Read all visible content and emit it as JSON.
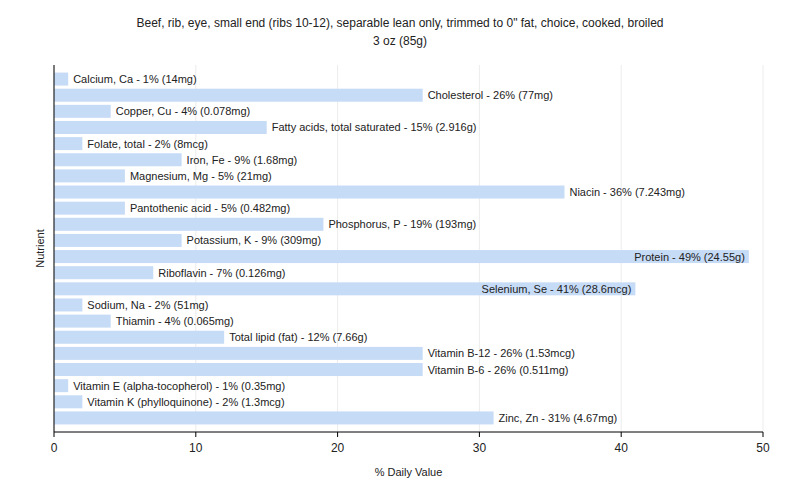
{
  "chart_data": {
    "type": "bar",
    "title": "Beef, rib, eye, small end (ribs 10-12), separable lean only, trimmed to 0\" fat, choice, cooked, broiled",
    "subtitle": "3 oz (85g)",
    "x_label": "% Daily Value",
    "y_label": "Nutrient",
    "orientation": "horizontal",
    "categories": [
      null,
      null,
      null,
      null,
      null,
      null,
      null,
      null,
      null,
      null,
      null,
      null,
      null,
      null,
      null,
      null,
      null,
      null,
      null,
      null,
      null,
      null
    ],
    "values": [
      1,
      26,
      4,
      15,
      2,
      9,
      5,
      36,
      5,
      19,
      9,
      49,
      7,
      41,
      2,
      4,
      12,
      26,
      26,
      1,
      2,
      31
    ],
    "value_labels": [
      "Calcium, Ca - 1% (14mg)",
      "Cholesterol - 26% (77mg)",
      "Copper, Cu - 4% (0.078mg)",
      "Fatty acids, total saturated - 15% (2.916g)",
      "Folate, total - 2% (8mcg)",
      "Iron, Fe - 9% (1.68mg)",
      "Magnesium, Mg - 5% (21mg)",
      "Niacin - 36% (7.243mg)",
      "Pantothenic acid - 5% (0.482mg)",
      "Phosphorus, P - 19% (193mg)",
      "Potassium, K - 9% (309mg)",
      "Protein - 49% (24.55g)",
      "Riboflavin - 7% (0.126mg)",
      "Selenium, Se - 41% (28.6mcg)",
      "Sodium, Na - 2% (51mg)",
      "Thiamin - 4% (0.065mg)",
      "Total lipid (fat) - 12% (7.66g)",
      "Vitamin B-12 - 26% (1.53mcg)",
      "Vitamin B-6 - 26% (0.511mg)",
      "Vitamin E (alpha-tocopherol) - 1% (0.35mg)",
      "Vitamin K (phylloquinone) - 2% (1.3mcg)",
      "Zinc, Zn - 31% (4.67mg)"
    ],
    "color": "#c6dbf6",
    "xlim": [
      0,
      50
    ],
    "xticks": [
      0,
      10,
      20,
      30,
      40,
      50
    ],
    "grid": true,
    "data_labels": true,
    "tick_labels": "x"
  }
}
